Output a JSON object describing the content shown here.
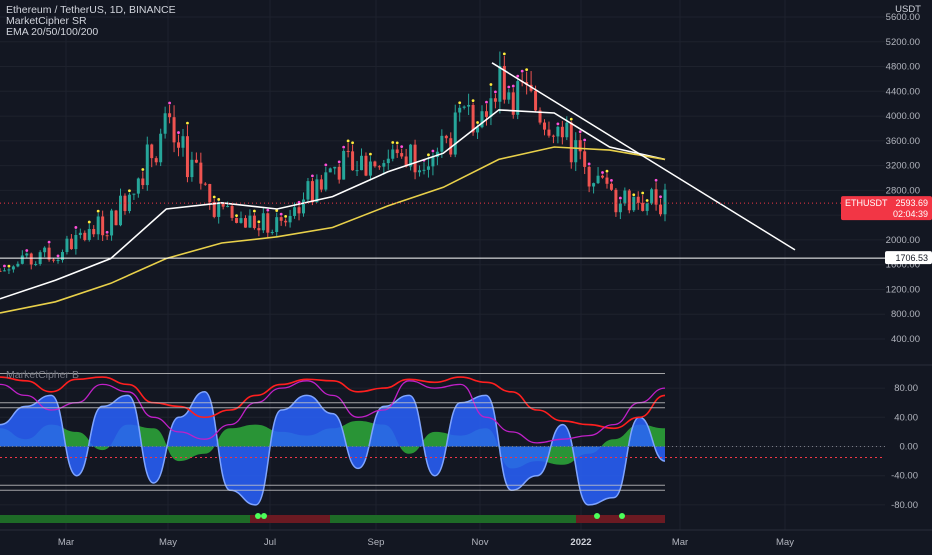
{
  "header": {
    "symbol_title": "Ethereum / TetherUS, 1D, BINANCE",
    "indicator_1": "MarketCipher SR",
    "indicator_2": "EMA 20/50/100/200",
    "currency": "USDT"
  },
  "lower_pane": {
    "title": "MarketCipher B"
  },
  "price_badge": {
    "ticker": "ETHUSDT",
    "price": "2593.69",
    "countdown": "02:04:39"
  },
  "level_badge": {
    "value": "1706.53"
  },
  "colors": {
    "background": "#131722",
    "grid": "#1e222d",
    "price_badge": "#f23645",
    "ema_white": "#ffffff",
    "ema_yellow": "#e8d04a",
    "trend_line": "#ffffff",
    "wt_blue": "#2962ff",
    "mf_green": "#2eaa3a",
    "mf_red": "#d43c3c",
    "rsi_red": "#ff1f1f",
    "stoch_purple": "#c020c8",
    "bar_green": "#1e6b27",
    "bar_red": "#6b1a22"
  },
  "chart_data": [
    {
      "type": "candlestick",
      "title": "Ethereum / TetherUS, 1D, BINANCE",
      "ylabel": "USDT",
      "y_scale": "log",
      "y_ticks": [
        "5600.00",
        "5200.00",
        "4800.00",
        "4400.00",
        "4000.00",
        "3600.00",
        "3200.00",
        "2800.00",
        "2400.00",
        "2000.00",
        "1600.00",
        "1200.00",
        "800.00",
        "400.00"
      ],
      "x_ticks": [
        "Mar",
        "May",
        "Jul",
        "Sep",
        "Nov",
        "2022",
        "Mar",
        "May"
      ],
      "x": [
        "2021-02",
        "2021-03",
        "2021-04",
        "2021-05",
        "2021-06",
        "2021-07",
        "2021-08",
        "2021-09",
        "2021-10",
        "2021-11",
        "2021-12",
        "2022-01",
        "2022-02"
      ],
      "close": [
        1500,
        1800,
        2300,
        3800,
        2400,
        2200,
        3200,
        3300,
        3500,
        4600,
        3900,
        2700,
        2594
      ],
      "ema_white": [
        1050,
        1350,
        1700,
        2500,
        2600,
        2500,
        2700,
        3100,
        3400,
        4100,
        4050,
        3500,
        3300
      ],
      "ema_yellow": [
        820,
        1000,
        1300,
        1700,
        1950,
        2050,
        2200,
        2550,
        2850,
        3300,
        3500,
        3450,
        3300
      ],
      "trend_line": {
        "from": [
          "2021-11-10",
          4860
        ],
        "to": [
          "2022-05-05",
          1840
        ]
      },
      "horizontal_level": 1706.53,
      "last_price": 2593.69
    },
    {
      "type": "oscillator",
      "title": "MarketCipher B",
      "y_ticks": [
        "80.00",
        "40.00",
        "0.00",
        "-40.00",
        "-80.00"
      ],
      "ylim": [
        -90,
        100
      ],
      "levels": [
        100,
        60,
        53,
        0,
        -53,
        -60
      ],
      "wave_trend": [
        30,
        55,
        70,
        -40,
        55,
        70,
        -50,
        40,
        75,
        -60,
        -80,
        50,
        70,
        45,
        -30,
        55,
        70,
        -40,
        60,
        70,
        -60,
        -40,
        30,
        -80,
        -70,
        40,
        -20
      ],
      "money_flow": [
        25,
        10,
        30,
        20,
        -5,
        30,
        25,
        -20,
        -10,
        25,
        30,
        20,
        15,
        25,
        35,
        30,
        -10,
        20,
        15,
        25,
        -30,
        -20,
        -25,
        -10,
        10,
        30,
        25
      ],
      "rsi": [
        95,
        90,
        75,
        92,
        95,
        85,
        60,
        55,
        40,
        50,
        70,
        85,
        92,
        90,
        75,
        80,
        92,
        88,
        95,
        88,
        75,
        50,
        35,
        30,
        25,
        40,
        70
      ],
      "stoch_rsi": [
        85,
        70,
        50,
        60,
        85,
        75,
        40,
        20,
        10,
        30,
        60,
        80,
        90,
        70,
        40,
        50,
        90,
        80,
        85,
        40,
        20,
        5,
        10,
        15,
        30,
        60,
        80
      ],
      "bottom_bar": [
        {
          "from": "2021-01",
          "to": "2021-06",
          "state": "green"
        },
        {
          "from": "2021-06",
          "to": "2021-08",
          "state": "red"
        },
        {
          "from": "2021-08",
          "to": "2021-12",
          "state": "green"
        },
        {
          "from": "2021-12",
          "to": "2022-02",
          "state": "red"
        }
      ]
    }
  ]
}
